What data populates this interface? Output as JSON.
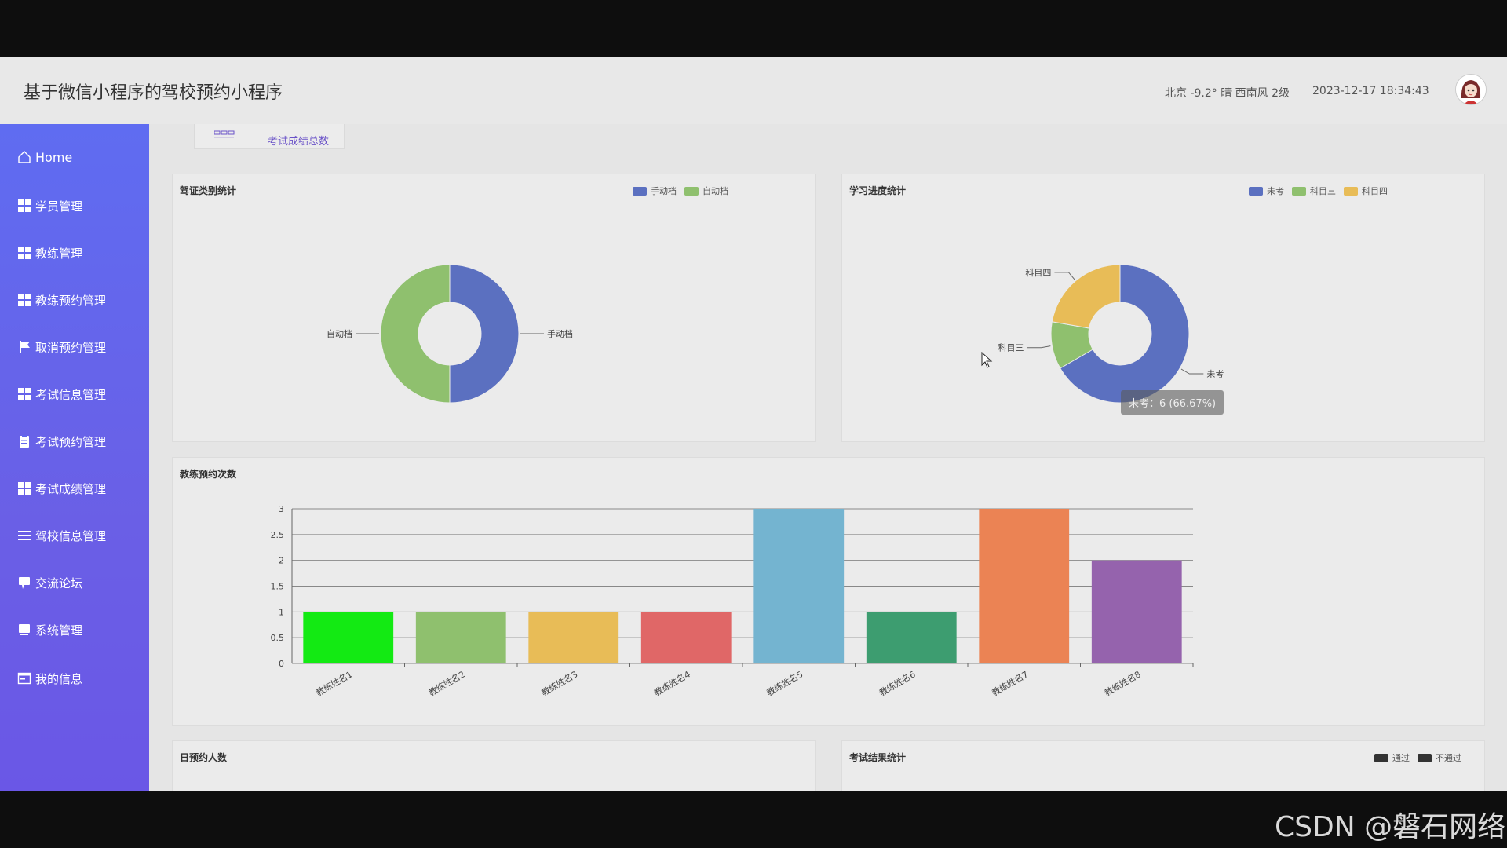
{
  "header": {
    "title": "基于微信小程序的驾校预约小程序",
    "weather": "北京  -9.2°  晴  西南风  2级",
    "datetime": "2023-12-17 18:34:43"
  },
  "sidebar": {
    "items": [
      {
        "label": "Home",
        "icon": "home-icon"
      },
      {
        "label": "学员管理",
        "icon": "grid-icon"
      },
      {
        "label": "教练管理",
        "icon": "grid-icon"
      },
      {
        "label": "教练预约管理",
        "icon": "grid-icon"
      },
      {
        "label": "取消预约管理",
        "icon": "flag-icon"
      },
      {
        "label": "考试信息管理",
        "icon": "grid-icon"
      },
      {
        "label": "考试预约管理",
        "icon": "clipboard-icon"
      },
      {
        "label": "考试成绩管理",
        "icon": "grid-icon"
      },
      {
        "label": "驾校信息管理",
        "icon": "list-icon"
      },
      {
        "label": "交流论坛",
        "icon": "chat-icon"
      },
      {
        "label": "系统管理",
        "icon": "monitor-icon"
      },
      {
        "label": "我的信息",
        "icon": "profile-icon"
      }
    ]
  },
  "stat_card": {
    "label": "考试成绩总数"
  },
  "panels": {
    "license": {
      "title": "驾证类别统计",
      "legend": [
        "手动档",
        "自动档"
      ]
    },
    "progress": {
      "title": "学习进度统计",
      "legend": [
        "未考",
        "科目三",
        "科目四"
      ],
      "tooltip": "未考：6 (66.67%)"
    },
    "coach": {
      "title": "教练预约次数"
    },
    "daily": {
      "title": "日预约人数"
    },
    "exam": {
      "title": "考试结果统计",
      "legend": [
        "通过",
        "不通过"
      ]
    }
  },
  "colors": {
    "blue": "#5b70c0",
    "green": "#8fc06e",
    "yellow": "#e8bc57",
    "dark": "#333333"
  },
  "chart_data": [
    {
      "type": "pie",
      "title": "驾证类别统计",
      "labels": [
        "手动档",
        "自动档"
      ],
      "values": [
        1,
        1
      ],
      "colors": [
        "#5b70c0",
        "#8fc06e"
      ],
      "donut": true
    },
    {
      "type": "pie",
      "title": "学习进度统计",
      "labels": [
        "未考",
        "科目三",
        "科目四"
      ],
      "values": [
        6,
        1,
        2
      ],
      "colors": [
        "#5b70c0",
        "#8fc06e",
        "#e8bc57"
      ],
      "donut": true
    },
    {
      "type": "bar",
      "title": "教练预约次数",
      "categories": [
        "教练姓名1",
        "教练姓名2",
        "教练姓名3",
        "教练姓名4",
        "教练姓名5",
        "教练姓名6",
        "教练姓名7",
        "教练姓名8"
      ],
      "values": [
        1,
        1,
        1,
        1,
        3,
        1,
        3,
        2
      ],
      "colors": [
        "#13ea13",
        "#8fc06e",
        "#e8bc57",
        "#e06767",
        "#74b4d0",
        "#3d9d70",
        "#eb8354",
        "#9563ad"
      ],
      "yticks": [
        "0",
        "0.5",
        "1",
        "1.5",
        "2",
        "2.5",
        "3"
      ],
      "ylim": [
        0,
        3
      ],
      "grid": true
    }
  ]
}
